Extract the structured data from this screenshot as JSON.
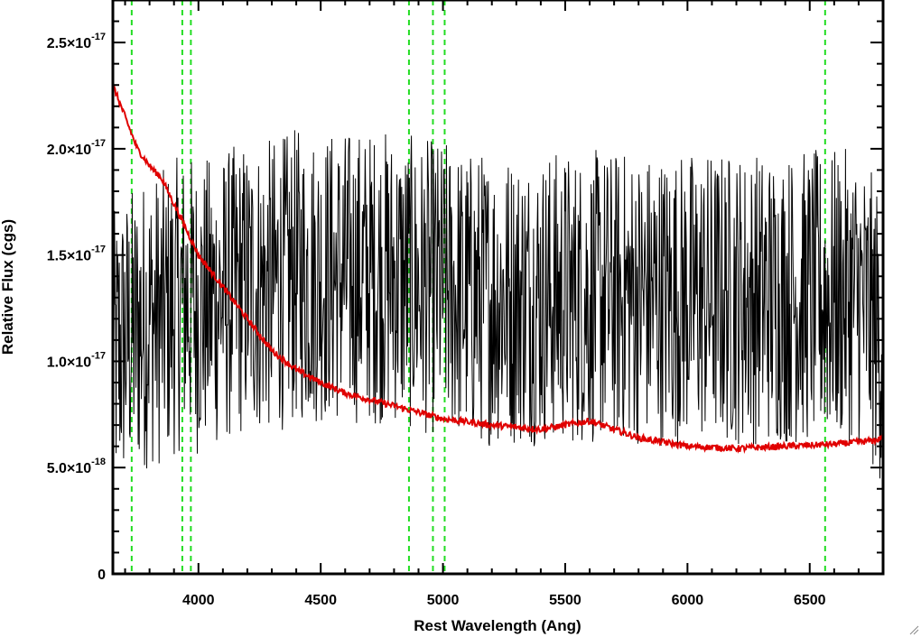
{
  "chart_data": {
    "type": "line",
    "title": "",
    "xlabel": "Rest Wavelength (Ang)",
    "ylabel": "Relative Flux (cgs)",
    "xlim": [
      3650,
      6800
    ],
    "ylim": [
      0,
      2.7e-17
    ],
    "x_ticks": [
      4000,
      4500,
      5000,
      5500,
      6000,
      6500
    ],
    "y_ticks": [
      {
        "value": 0,
        "mantissa": "0",
        "exponent": ""
      },
      {
        "value": 5e-18,
        "mantissa": "5.0×10",
        "exponent": "-18"
      },
      {
        "value": 1e-17,
        "mantissa": "1.0×10",
        "exponent": "-17"
      },
      {
        "value": 1.5e-17,
        "mantissa": "1.5×10",
        "exponent": "-17"
      },
      {
        "value": 2e-17,
        "mantissa": "2.0×10",
        "exponent": "-17"
      },
      {
        "value": 2.5e-17,
        "mantissa": "2.5×10",
        "exponent": "-17"
      }
    ],
    "series": [
      {
        "color": "#000000",
        "style": "noisy-spectrum",
        "x": [
          3650,
          3700,
          3750,
          3800,
          3850,
          3900,
          3950,
          4000,
          4100,
          4200,
          4300,
          4400,
          4500,
          4600,
          4700,
          4800,
          4900,
          5000,
          5100,
          5200,
          5300,
          5400,
          5500,
          5600,
          5700,
          5800,
          5900,
          6000,
          6100,
          6200,
          6300,
          6400,
          6500,
          6600,
          6700,
          6800
        ],
        "y": [
          1e-17,
          1.1e-17,
          1.15e-17,
          1.2e-17,
          1.2e-17,
          1.25e-17,
          1.3e-17,
          1.25e-17,
          1.3e-17,
          1.35e-17,
          1.35e-17,
          1.4e-17,
          1.4e-17,
          1.4e-17,
          1.4e-17,
          1.4e-17,
          1.35e-17,
          1.35e-17,
          1.3e-17,
          1.3e-17,
          1.3e-17,
          1.3e-17,
          1.3e-17,
          1.3e-17,
          1.3e-17,
          1.3e-17,
          1.3e-17,
          1.3e-17,
          1.3e-17,
          1.3e-17,
          1.3e-17,
          1.3e-17,
          1.3e-17,
          1.3e-17,
          1.3e-17,
          1.1e-17
        ],
        "noise_amplitude": 7e-18
      },
      {
        "color": "#e00000",
        "style": "model-fit",
        "x": [
          3650,
          3700,
          3750,
          3800,
          3850,
          3900,
          3950,
          4000,
          4100,
          4200,
          4300,
          4400,
          4500,
          4600,
          4700,
          4800,
          4900,
          5000,
          5200,
          5400,
          5600,
          5700,
          5800,
          5900,
          6000,
          6200,
          6400,
          6600,
          6700,
          6780,
          6800
        ],
        "y": [
          2.3e-17,
          2.15e-17,
          2e-17,
          1.92e-17,
          1.86e-17,
          1.74e-17,
          1.62e-17,
          1.5e-17,
          1.35e-17,
          1.2e-17,
          1.05e-17,
          9.6e-18,
          9e-18,
          8.5e-18,
          8.2e-18,
          7.9e-18,
          7.6e-18,
          7.3e-18,
          7e-18,
          6.8e-18,
          7.2e-18,
          6.8e-18,
          6.4e-18,
          6.2e-18,
          6e-18,
          5.9e-18,
          6e-18,
          6.1e-18,
          6.2e-18,
          6.3e-18,
          6.5e-18
        ]
      }
    ],
    "reference_lines": {
      "color": "#22dd22",
      "style": "dashed",
      "x": [
        3727,
        3934,
        3969,
        4861,
        4959,
        5007,
        6563
      ]
    }
  }
}
